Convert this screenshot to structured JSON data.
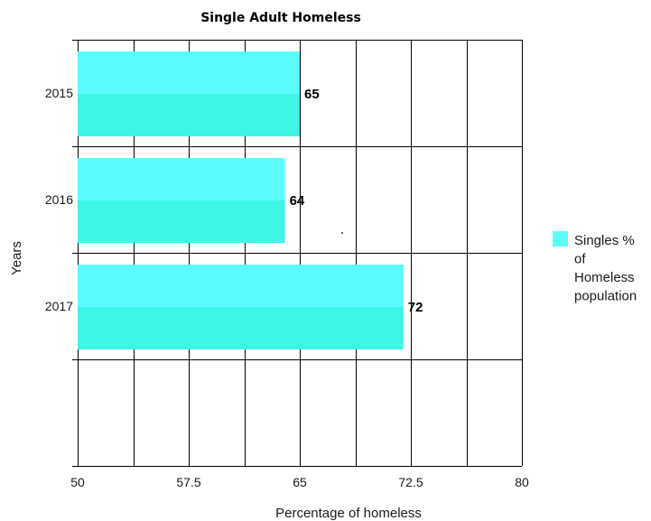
{
  "chart_data": {
    "type": "bar",
    "orientation": "horizontal",
    "title": "Single Adult Homeless",
    "xlabel": "Percentage of homeless",
    "ylabel": "Years",
    "categories": [
      "2015",
      "2016",
      "2017"
    ],
    "series": [
      {
        "name": "Singles % of Homeless population",
        "legend_lines": [
          "Singles %",
          "of",
          "Homeless",
          "population"
        ],
        "values": [
          65,
          64,
          72
        ],
        "data_labels": [
          "65",
          "64",
          "72"
        ],
        "color": "#5cfcfc",
        "color_lower": "#3ef6e6"
      }
    ],
    "xlim": [
      50,
      80
    ],
    "xticks": [
      50,
      57.5,
      65,
      72.5,
      80
    ],
    "xtick_labels": [
      "50",
      "57.5",
      "65",
      "72.5",
      "80"
    ],
    "grid": true,
    "legend_position": "right"
  }
}
